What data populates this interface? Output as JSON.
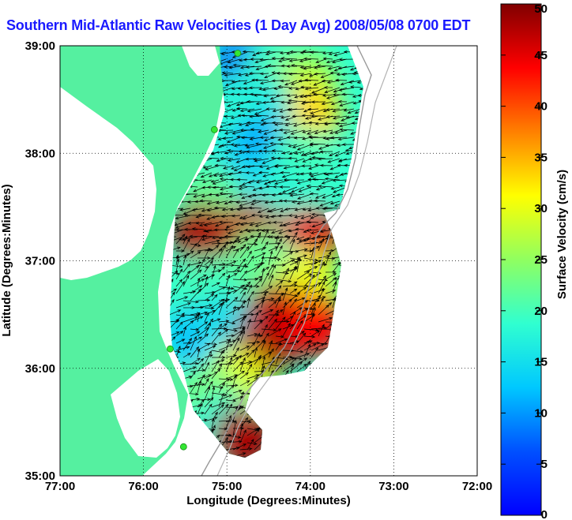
{
  "map": {
    "title": "Southern Mid-Atlantic Raw Velocities (1 Day Avg) 2008/05/08 0700 EDT",
    "xlabel": "Longitude (Degrees:Minutes)",
    "ylabel": "Latitude (Degrees:Minutes)",
    "x_ticks": [
      "77:00",
      "76:00",
      "75:00",
      "74:00",
      "73:00",
      "72:00"
    ],
    "y_ticks": [
      "39:00",
      "38:00",
      "37:00",
      "36:00",
      "35:00"
    ],
    "lon_range": [
      -77,
      -72
    ],
    "lat_range": [
      35,
      39
    ],
    "grid": "dotted",
    "land_color": "#55f0a0",
    "water_color": "#ffffff",
    "vector_color": "#000000",
    "station_color": "#33e633"
  },
  "colorbar": {
    "label": "Surface Velocity (cm/s)",
    "ticks": [
      "0",
      "5",
      "10",
      "15",
      "20",
      "25",
      "30",
      "35",
      "40",
      "45",
      "50"
    ],
    "range": [
      0,
      50
    ],
    "colormap": "jet"
  },
  "stations": [
    {
      "lon": -74.87,
      "lat": 38.93
    },
    {
      "lon": -75.15,
      "lat": 38.22
    },
    {
      "lon": -75.68,
      "lat": 36.18
    },
    {
      "lon": -75.52,
      "lat": 35.27
    }
  ],
  "velocity_regions": [
    {
      "lon": -74.8,
      "lat": 38.82,
      "speed": 8
    },
    {
      "lon": -74.45,
      "lat": 38.75,
      "speed": 20
    },
    {
      "lon": -74.05,
      "lat": 38.65,
      "speed": 27
    },
    {
      "lon": -74.0,
      "lat": 38.35,
      "speed": 33
    },
    {
      "lon": -74.6,
      "lat": 38.45,
      "speed": 16
    },
    {
      "lon": -74.95,
      "lat": 38.4,
      "speed": 18
    },
    {
      "lon": -74.6,
      "lat": 38.05,
      "speed": 11
    },
    {
      "lon": -74.1,
      "lat": 37.95,
      "speed": 20
    },
    {
      "lon": -74.9,
      "lat": 37.75,
      "speed": 14
    },
    {
      "lon": -75.2,
      "lat": 37.6,
      "speed": 22
    },
    {
      "lon": -74.3,
      "lat": 37.6,
      "speed": 18
    },
    {
      "lon": -75.3,
      "lat": 37.25,
      "speed": 48
    },
    {
      "lon": -74.7,
      "lat": 37.25,
      "speed": 47
    },
    {
      "lon": -74.0,
      "lat": 37.2,
      "speed": 45
    },
    {
      "lon": -74.35,
      "lat": 36.9,
      "speed": 12
    },
    {
      "lon": -74.6,
      "lat": 37.0,
      "speed": 22
    },
    {
      "lon": -75.25,
      "lat": 36.75,
      "speed": 20
    },
    {
      "lon": -74.05,
      "lat": 36.8,
      "speed": 30
    },
    {
      "lon": -75.35,
      "lat": 36.3,
      "speed": 12
    },
    {
      "lon": -75.05,
      "lat": 36.4,
      "speed": 15
    },
    {
      "lon": -74.4,
      "lat": 36.5,
      "speed": 47
    },
    {
      "lon": -73.95,
      "lat": 36.4,
      "speed": 44
    },
    {
      "lon": -74.6,
      "lat": 36.15,
      "speed": 48
    },
    {
      "lon": -74.9,
      "lat": 35.9,
      "speed": 30
    },
    {
      "lon": -75.2,
      "lat": 35.75,
      "speed": 24
    },
    {
      "lon": -75.05,
      "lat": 35.5,
      "speed": 18
    },
    {
      "lon": -74.8,
      "lat": 35.35,
      "speed": 48
    }
  ]
}
